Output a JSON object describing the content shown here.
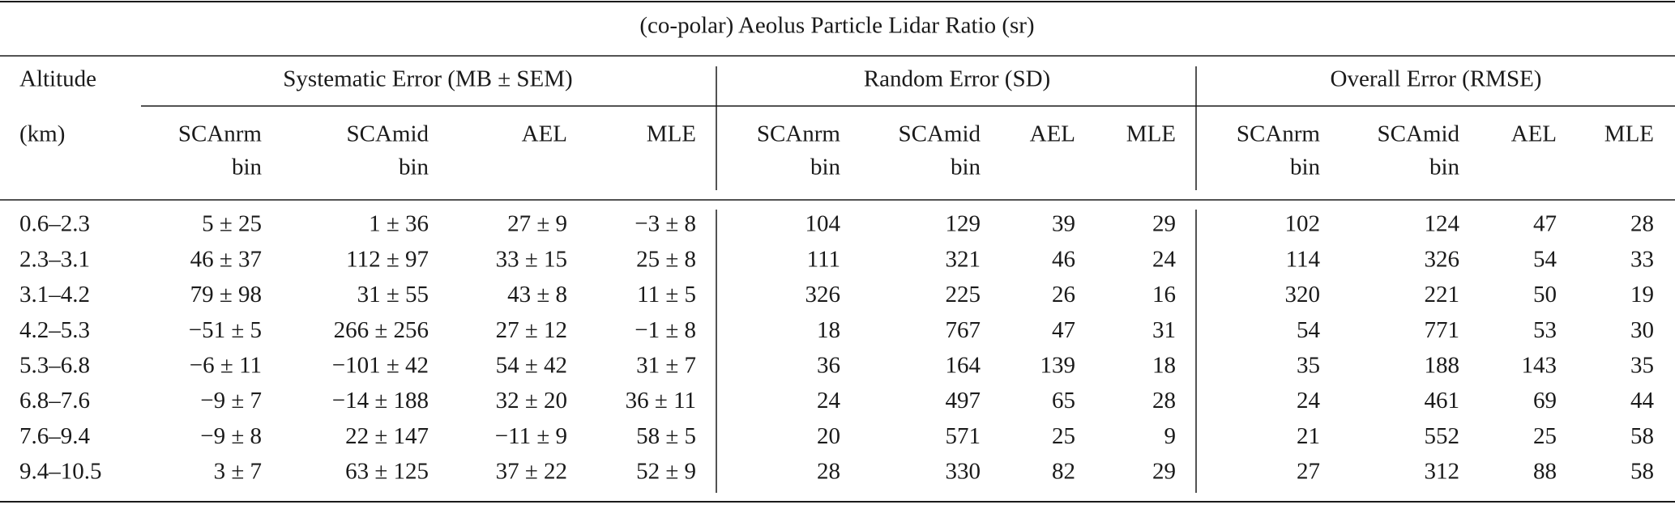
{
  "table": {
    "title": "(co-polar) Aeolus Particle Lidar Ratio (sr)",
    "altitude_header": [
      "Altitude",
      "(km)"
    ],
    "groups": [
      "Systematic Error (MB ± SEM)",
      "Random Error (SD)",
      "Overall Error (RMSE)"
    ],
    "columns": [
      [
        "SCAnrm",
        "bin"
      ],
      [
        "SCAmid",
        "bin"
      ],
      [
        "AEL"
      ],
      [
        "MLE"
      ],
      [
        "SCAnrm",
        "bin"
      ],
      [
        "SCAmid",
        "bin"
      ],
      [
        "AEL"
      ],
      [
        "MLE"
      ],
      [
        "SCAnrm",
        "bin"
      ],
      [
        "SCAmid",
        "bin"
      ],
      [
        "AEL"
      ],
      [
        "MLE"
      ]
    ],
    "rows": [
      [
        "0.6–2.3",
        "5 ± 25",
        "1 ± 36",
        "27 ± 9",
        "−3 ± 8",
        "104",
        "129",
        "39",
        "29",
        "102",
        "124",
        "47",
        "28"
      ],
      [
        "2.3–3.1",
        "46 ± 37",
        "112 ± 97",
        "33 ± 15",
        "25 ± 8",
        "111",
        "321",
        "46",
        "24",
        "114",
        "326",
        "54",
        "33"
      ],
      [
        "3.1–4.2",
        "79 ± 98",
        "31 ± 55",
        "43 ± 8",
        "11 ± 5",
        "326",
        "225",
        "26",
        "16",
        "320",
        "221",
        "50",
        "19"
      ],
      [
        "4.2–5.3",
        "−51 ± 5",
        "266 ± 256",
        "27 ± 12",
        "−1 ± 8",
        "18",
        "767",
        "47",
        "31",
        "54",
        "771",
        "53",
        "30"
      ],
      [
        "5.3–6.8",
        "−6 ± 11",
        "−101 ± 42",
        "54 ± 42",
        "31 ± 7",
        "36",
        "164",
        "139",
        "18",
        "35",
        "188",
        "143",
        "35"
      ],
      [
        "6.8–7.6",
        "−9 ± 7",
        "−14 ± 188",
        "32 ± 20",
        "36 ± 11",
        "24",
        "497",
        "65",
        "28",
        "24",
        "461",
        "69",
        "44"
      ],
      [
        "7.6–9.4",
        "−9 ± 8",
        "22 ± 147",
        "−11 ± 9",
        "58 ± 5",
        "20",
        "571",
        "25",
        "9",
        "21",
        "552",
        "25",
        "58"
      ],
      [
        "9.4–10.5",
        "3 ± 7",
        "63 ± 125",
        "37 ± 22",
        "52 ± 9",
        "28",
        "330",
        "82",
        "29",
        "27",
        "312",
        "88",
        "58"
      ]
    ]
  }
}
